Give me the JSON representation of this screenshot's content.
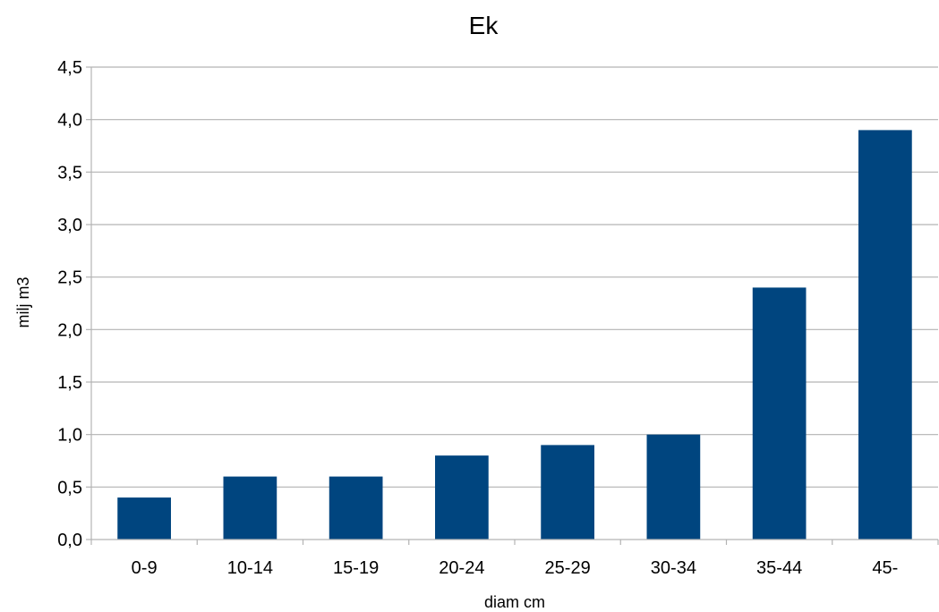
{
  "chart_data": {
    "type": "bar",
    "title": "Ek",
    "xlabel": "diam cm",
    "ylabel": "milj m3",
    "categories": [
      "0-9",
      "10-14",
      "15-19",
      "20-24",
      "25-29",
      "30-34",
      "35-44",
      "45-"
    ],
    "values": [
      0.4,
      0.6,
      0.6,
      0.8,
      0.9,
      1.0,
      2.4,
      3.9
    ],
    "ylim": [
      0,
      4.5
    ],
    "yticks": [
      0,
      0.5,
      1.0,
      1.5,
      2.0,
      2.5,
      3.0,
      3.5,
      4.0,
      4.5
    ],
    "ytick_labels": [
      "0,0",
      "0,5",
      "1,0",
      "1,5",
      "2,0",
      "2,5",
      "3,0",
      "3,5",
      "4,0",
      "4,5"
    ],
    "grid": true,
    "legend": false,
    "colors": {
      "bar": "#00457f",
      "grid": "#b3b3b3",
      "axis": "#b3b3b3",
      "text": "#000000"
    }
  }
}
